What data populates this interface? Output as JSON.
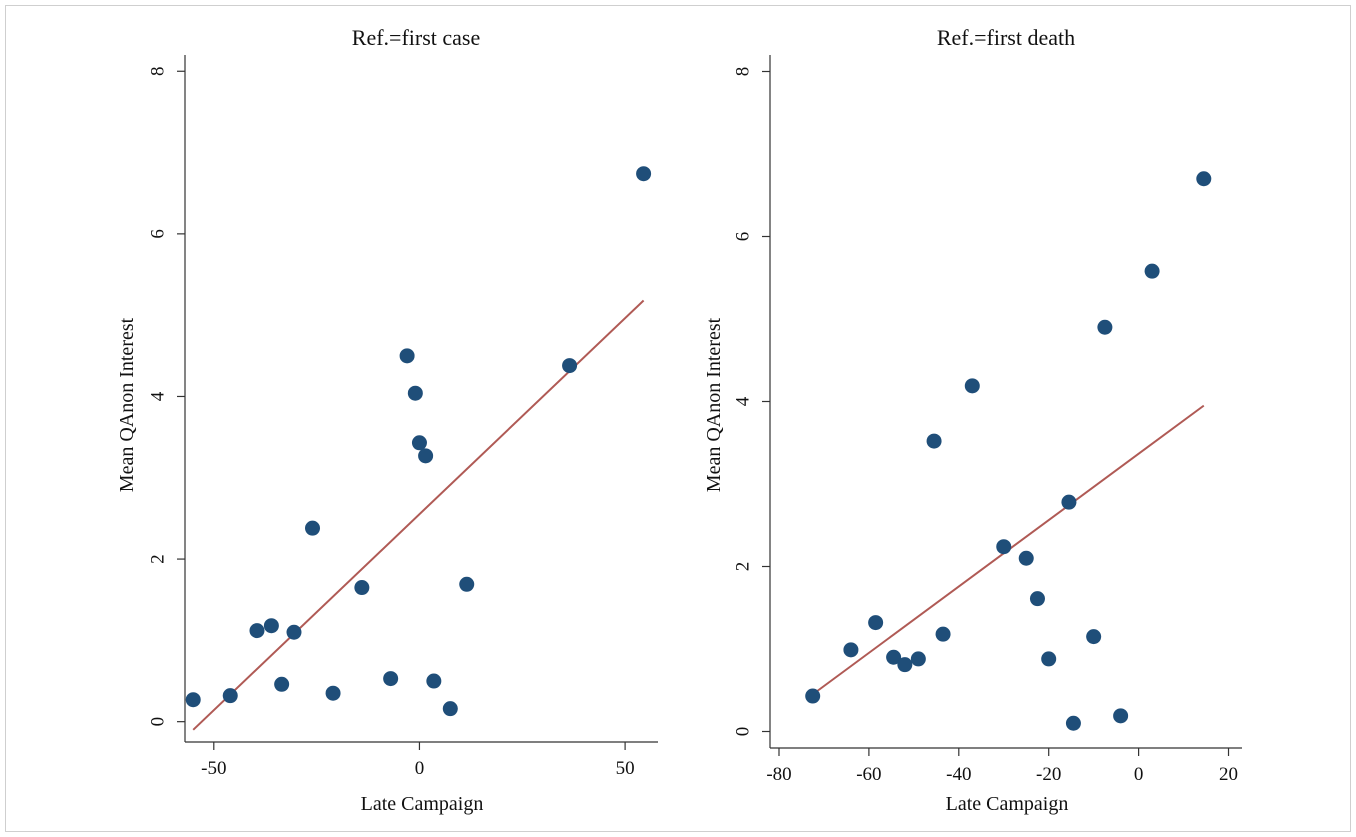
{
  "chart_data": [
    {
      "type": "scatter",
      "title": "Ref.=first case",
      "xlabel": "Late Campaign",
      "ylabel": "Mean QAnon Interest",
      "xlim": [
        -57,
        58
      ],
      "ylim": [
        -0.25,
        8.2
      ],
      "xticks": [
        -50,
        0,
        50
      ],
      "yticks": [
        0,
        2,
        4,
        6,
        8
      ],
      "points": [
        {
          "x": -55,
          "y": 0.27
        },
        {
          "x": -46,
          "y": 0.32
        },
        {
          "x": -39.5,
          "y": 1.12
        },
        {
          "x": -36,
          "y": 1.18
        },
        {
          "x": -33.5,
          "y": 0.46
        },
        {
          "x": -30.5,
          "y": 1.1
        },
        {
          "x": -26,
          "y": 2.38
        },
        {
          "x": -21,
          "y": 0.35
        },
        {
          "x": -14,
          "y": 1.65
        },
        {
          "x": -7,
          "y": 0.53
        },
        {
          "x": -3,
          "y": 4.5
        },
        {
          "x": -1,
          "y": 4.04
        },
        {
          "x": 0,
          "y": 3.43
        },
        {
          "x": 1.5,
          "y": 3.27
        },
        {
          "x": 3.5,
          "y": 0.5
        },
        {
          "x": 7.5,
          "y": 0.16
        },
        {
          "x": 11.5,
          "y": 1.69
        },
        {
          "x": 36.5,
          "y": 4.38
        },
        {
          "x": 54.5,
          "y": 6.74
        }
      ],
      "fit_line": {
        "x": [
          -55,
          54.5
        ],
        "y": [
          -0.1,
          5.18
        ]
      }
    },
    {
      "type": "scatter",
      "title": "Ref.=first death",
      "xlabel": "Late Campaign",
      "ylabel": "Mean QAnon Interest",
      "xlim": [
        -82,
        23
      ],
      "ylim": [
        -0.2,
        8.2
      ],
      "xticks": [
        -80,
        -60,
        -40,
        -20,
        0,
        20
      ],
      "yticks": [
        0,
        2,
        4,
        6,
        8
      ],
      "points": [
        {
          "x": -72.5,
          "y": 0.43
        },
        {
          "x": -64,
          "y": 0.99
        },
        {
          "x": -58.5,
          "y": 1.32
        },
        {
          "x": -54.5,
          "y": 0.9
        },
        {
          "x": -52,
          "y": 0.81
        },
        {
          "x": -49,
          "y": 0.88
        },
        {
          "x": -45.5,
          "y": 3.52
        },
        {
          "x": -43.5,
          "y": 1.18
        },
        {
          "x": -37,
          "y": 4.19
        },
        {
          "x": -30,
          "y": 2.24
        },
        {
          "x": -25,
          "y": 2.1
        },
        {
          "x": -22.5,
          "y": 1.61
        },
        {
          "x": -20,
          "y": 0.88
        },
        {
          "x": -15.5,
          "y": 2.78
        },
        {
          "x": -14.5,
          "y": 0.1
        },
        {
          "x": -10,
          "y": 1.15
        },
        {
          "x": -7.5,
          "y": 4.9
        },
        {
          "x": -4,
          "y": 0.19
        },
        {
          "x": 3,
          "y": 5.58
        },
        {
          "x": 14.5,
          "y": 6.7
        }
      ],
      "fit_line": {
        "x": [
          -72.5,
          14.5
        ],
        "y": [
          0.45,
          3.95
        ]
      }
    }
  ]
}
